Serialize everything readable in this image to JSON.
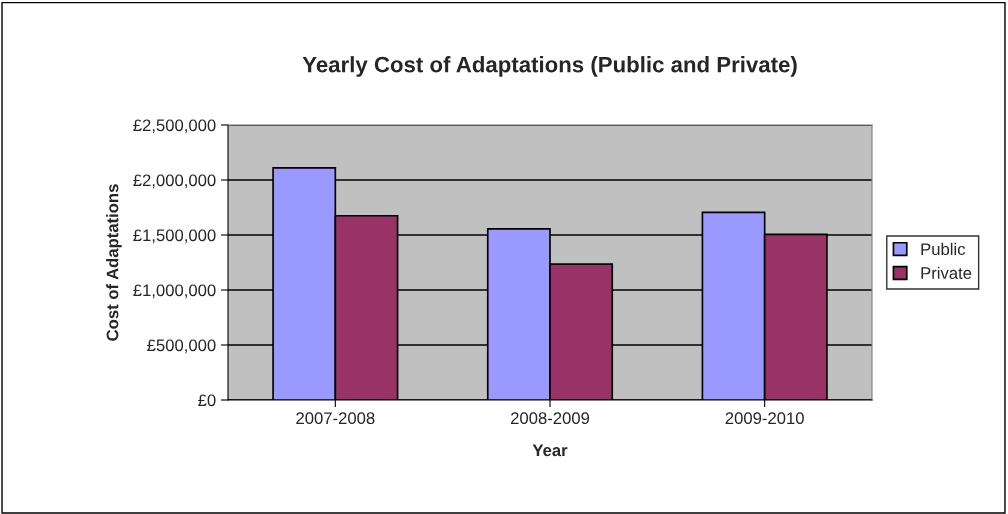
{
  "chart_data": {
    "type": "bar",
    "title": "Yearly Cost of Adaptations (Public and Private)",
    "xlabel": "Year",
    "ylabel": "Cost of Adaptations",
    "categories": [
      "2007-2008",
      "2008-2009",
      "2009-2010"
    ],
    "series": [
      {
        "name": "Public",
        "color": "#9999ff",
        "values": [
          2110000,
          1555000,
          1705000
        ]
      },
      {
        "name": "Private",
        "color": "#993366",
        "values": [
          1675000,
          1235000,
          1505000
        ]
      }
    ],
    "ylim": [
      0,
      2500000
    ],
    "yticks": [
      {
        "value": 0,
        "label": "£0"
      },
      {
        "value": 500000,
        "label": "£500,000"
      },
      {
        "value": 1000000,
        "label": "£1,000,000"
      },
      {
        "value": 1500000,
        "label": "£1,500,000"
      },
      {
        "value": 2000000,
        "label": "£2,000,000"
      },
      {
        "value": 2500000,
        "label": "£2,500,000"
      }
    ],
    "grid": "y",
    "legend": "right"
  }
}
